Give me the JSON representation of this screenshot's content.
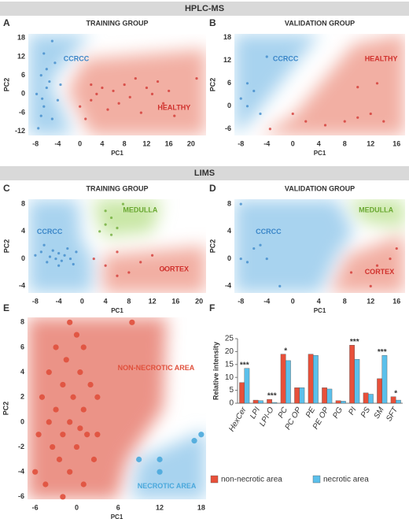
{
  "sections": [
    "HPLC-MS",
    "LIMS"
  ],
  "chart_data": [
    {
      "type": "scatter",
      "panel": "A",
      "title": "TRAINING GROUP",
      "x_label": "PC1",
      "y_label": "PC2",
      "xlim": [
        -9.3,
        22.7
      ],
      "ylim": [
        -13.3,
        19.3
      ],
      "xticks": [
        -8,
        -4,
        0,
        4,
        8,
        12,
        16,
        20
      ],
      "yticks": [
        18,
        12,
        6,
        0,
        -6,
        -12
      ],
      "series": [
        {
          "name": "CCRCC",
          "color": "#3a86c8",
          "x": [
            -7.5,
            -7,
            -6.5,
            -7.8,
            -6,
            -5.5,
            -7,
            -6,
            -4.5,
            -6.5,
            -5,
            -4,
            -5,
            -3.5,
            -6.8
          ],
          "values": [
            -11,
            -7,
            -4,
            0,
            2,
            4,
            6,
            8,
            10,
            13,
            17,
            -2,
            -8,
            3,
            -1.5
          ]
        },
        {
          "name": "HEALTHY",
          "color": "#d0312d",
          "x": [
            0,
            1,
            2,
            3,
            4,
            5,
            6,
            7,
            8,
            9,
            10,
            11,
            12,
            13,
            14,
            15,
            16,
            17,
            2,
            21
          ],
          "values": [
            -4,
            -8,
            -2,
            0,
            2,
            -5,
            1,
            -3,
            3,
            -1,
            5,
            -6,
            2,
            0,
            4,
            -3,
            1,
            -7,
            3,
            5
          ]
        }
      ]
    },
    {
      "type": "scatter",
      "panel": "B",
      "title": "VALIDATION GROUP",
      "x_label": "PC1",
      "y_label": "PC2",
      "xlim": [
        -9,
        17.3
      ],
      "ylim": [
        -7.7,
        19
      ],
      "xticks": [
        -8,
        -4,
        0,
        4,
        8,
        12,
        16
      ],
      "yticks": [
        18,
        12,
        6,
        0,
        -6
      ],
      "series": [
        {
          "name": "CCRCC",
          "color": "#3a86c8",
          "x": [
            -8,
            -7,
            -6,
            -5,
            -4,
            -7
          ],
          "values": [
            2,
            0,
            4,
            -2,
            13,
            6
          ]
        },
        {
          "name": "HEALTHY",
          "color": "#d0312d",
          "x": [
            -3.5,
            0,
            2,
            5,
            8,
            10,
            12,
            13,
            10,
            14
          ],
          "values": [
            -6,
            -2,
            -4,
            -5,
            -4,
            -3,
            -2,
            6,
            5,
            -4
          ]
        }
      ]
    },
    {
      "type": "scatter",
      "panel": "C",
      "title": "TRAINING GROUP",
      "x_label": "PC1",
      "y_label": "PC2",
      "xlim": [
        -9.2,
        21.2
      ],
      "ylim": [
        -5,
        8.7
      ],
      "xticks": [
        -8,
        -4,
        0,
        4,
        8,
        12,
        16,
        20
      ],
      "yticks": [
        8,
        4,
        0,
        -4
      ],
      "series": [
        {
          "name": "CCRCC",
          "color": "#3a86c8",
          "x": [
            -8,
            -7,
            -6,
            -5.5,
            -5,
            -4.5,
            -4,
            -3.5,
            -3,
            -2.5,
            -2,
            -1.5,
            -6.5,
            -4,
            -1
          ],
          "values": [
            0.5,
            1,
            -0.5,
            0.3,
            1.2,
            0,
            0.8,
            -0.3,
            0.5,
            1.5,
            0,
            -0.8,
            2,
            -1,
            1
          ]
        },
        {
          "name": "MEDULLA",
          "color": "#6aa832",
          "x": [
            3,
            4,
            5,
            6,
            7,
            5,
            4
          ],
          "values": [
            4,
            5,
            6,
            4.5,
            8,
            3.5,
            7
          ]
        },
        {
          "name": "CORTEX",
          "color": "#d0312d",
          "x": [
            2,
            4,
            6,
            8,
            10,
            12,
            6,
            14
          ],
          "values": [
            0,
            -1,
            1,
            -2,
            -0.5,
            0.5,
            -2.5,
            -1.5
          ]
        }
      ]
    },
    {
      "type": "scatter",
      "panel": "D",
      "title": "VALIDATION GROUP",
      "x_label": "PC1",
      "y_label": "PC2",
      "xlim": [
        -9,
        17.3
      ],
      "ylim": [
        -5,
        8.7
      ],
      "xticks": [
        -8,
        -4,
        0,
        4,
        8,
        12,
        16
      ],
      "yticks": [
        8,
        4,
        0,
        -4
      ],
      "series": [
        {
          "name": "CCRCC",
          "color": "#3a86c8",
          "x": [
            -8,
            -6,
            -7,
            -4,
            -2,
            -5,
            -8
          ],
          "values": [
            8,
            1.5,
            -0.5,
            0,
            -4,
            2,
            0
          ]
        },
        {
          "name": "MEDULLA",
          "color": "#6aa832",
          "x": [],
          "values": []
        },
        {
          "name": "CORTEX",
          "color": "#d0312d",
          "x": [
            12,
            15,
            16,
            13,
            9
          ],
          "values": [
            -4,
            0,
            1.5,
            -1,
            -2
          ]
        }
      ]
    },
    {
      "type": "scatter",
      "panel": "E",
      "x_label": "PC1",
      "y_label": "PC2",
      "xlim": [
        -7.1,
        18.7
      ],
      "ylim": [
        -6.2,
        8.4
      ],
      "xticks": [
        -6,
        0,
        6,
        12,
        18
      ],
      "yticks": [
        8,
        6,
        4,
        2,
        0,
        -2,
        -4,
        -6
      ],
      "series": [
        {
          "name": "NON-NECROTIC AREA",
          "color": "#e0503c",
          "x": [
            -6,
            -5.5,
            -5,
            -4.5,
            -4,
            -4,
            -3.5,
            -3,
            -3,
            -2.5,
            -2,
            -2,
            -1.5,
            -1,
            -1,
            -0.5,
            0,
            0,
            0.5,
            1,
            1,
            1.5,
            2,
            2.5,
            3,
            -1,
            1,
            -2,
            3,
            8,
            0.5
          ],
          "values": [
            -4,
            -1,
            2,
            -5,
            0,
            4,
            -2,
            6,
            1,
            -3,
            3,
            -1,
            5,
            0,
            -4,
            2,
            7,
            -2,
            4,
            1,
            -5,
            -1,
            3,
            -3,
            2,
            8,
            6,
            -6,
            -1,
            8,
            -0.5
          ]
        },
        {
          "name": "NECROTIC AREA",
          "color": "#4aa8dc",
          "x": [
            9,
            12,
            12,
            17,
            18
          ],
          "values": [
            -3,
            -3,
            -4,
            -1.5,
            -1
          ]
        }
      ]
    },
    {
      "type": "bar",
      "panel": "F",
      "y_label": "Relative intensity",
      "categories": [
        "HexCer",
        "LPI",
        "LPI-O",
        "PC",
        "PC OP",
        "PE",
        "PE OP",
        "PG",
        "PI",
        "PS",
        "SM",
        "SFT"
      ],
      "ylim": [
        0,
        25
      ],
      "yticks": [
        0,
        5,
        10,
        15,
        20,
        25
      ],
      "significance": [
        "***",
        null,
        "***",
        "*",
        null,
        null,
        null,
        null,
        "***",
        null,
        "***",
        "*"
      ],
      "series": [
        {
          "name": "non-necrotic area",
          "color": "#e8503a",
          "values": [
            8,
            1.2,
            1.5,
            19,
            6,
            19,
            6,
            1,
            22.5,
            4,
            9.5,
            2.5
          ]
        },
        {
          "name": "necrotic area",
          "color": "#5bc0eb",
          "values": [
            13.5,
            1,
            0.3,
            16.5,
            6,
            18.5,
            5.5,
            0.8,
            17,
            3.5,
            18.5,
            1.2
          ]
        }
      ]
    }
  ]
}
